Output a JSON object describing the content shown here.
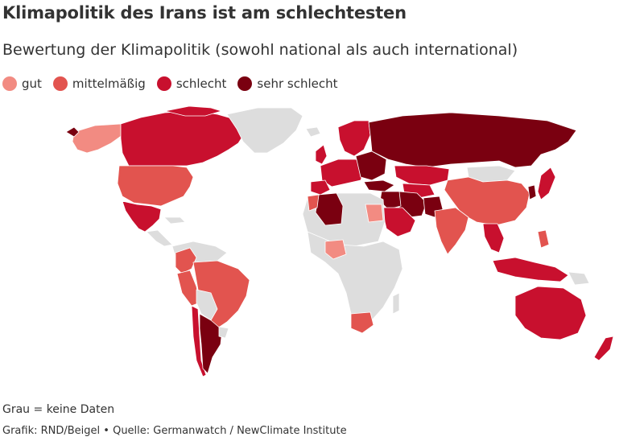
{
  "title": "Klimapolitik des Irans ist am schlechtesten",
  "subtitle": "Bewertung der Klimapolitik (sowohl national als auch international)",
  "legend": {
    "items": [
      {
        "label": "gut",
        "color": "#f28b82"
      },
      {
        "label": "mittelmäßig",
        "color": "#e2544f"
      },
      {
        "label": "schlecht",
        "color": "#c8102e"
      },
      {
        "label": "sehr schlecht",
        "color": "#7a0010"
      }
    ]
  },
  "colors": {
    "gut": "#f28b82",
    "mittelmaessig": "#e2544f",
    "schlecht": "#c8102e",
    "sehr_schlecht": "#7a0010",
    "keine_daten": "#dddddd"
  },
  "note": "Grau = keine Daten",
  "credit": {
    "text": "Grafik: RND/Beigel • Quelle: Germanwatch / NewClimate Institute"
  }
}
